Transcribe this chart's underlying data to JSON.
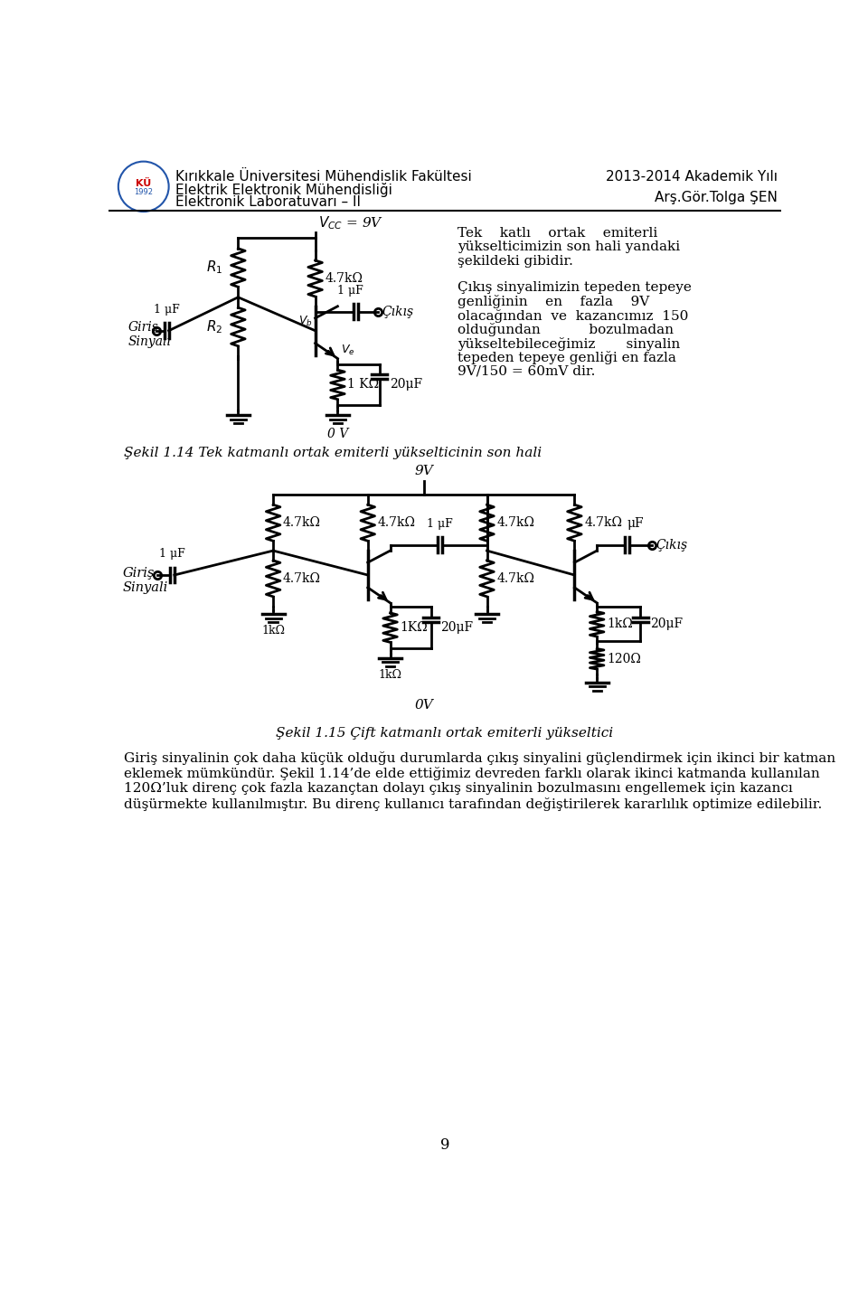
{
  "header_left_line1": "Kırıkkale Üniversitesi Mühendislik Fakültesi",
  "header_left_line2": "Elektrik Elektronik Mühendisliği",
  "header_left_line3": "Elektronik Laboratuvarı – II",
  "header_right_line1": "2013-2014 Akademik Yılı",
  "header_right_line2": "Arş.Gör.Tolga ŞEN",
  "caption1": "Şekil 1.14 Tek katmanlı ortak emiterli yükselticinin son hali",
  "caption2": "Şekil 1.15 Çift katmanlı ortak emiterli yükseltici",
  "text_right1_lines": [
    "Tek    katlı    ortak    emiterli",
    "yükselticimizin son hali yandaki",
    "şekildeki gibidir."
  ],
  "text_right2_lines": [
    "Çıkış sinyalimizin tepeden tepeye",
    "genliğinin    en    fazla    9V",
    "olacağından  ve  kazancımız  150",
    "olduğundan           bozulmadan",
    "yükseltebileceğimiz       sinyalin",
    "tepeden tepeye genliği en fazla",
    "9V/150 = 60mV dir."
  ],
  "bottom_text_line1": "Giriş sinyalinin çok daha küçük olduğu durumlarda çıkış sinyalini güçlendirmek için ikinci bir katman",
  "bottom_text_line2": "eklemek mümkündür. Şekil 1.14’de elde ettiğimiz devreden farklı olarak ikinci katmanda kullanılan",
  "bottom_text_line3": "120Ω’luk direnç çok fazla kazançtan dolayı çıkış sinyalinin bozulmasını engellemek için kazancı",
  "bottom_text_line4": "düşürmekte kullanılmıştır. Bu direnç kullanıcı tarafından değiştirilerek kararlılık optimize edilebilir.",
  "page_number": "9",
  "bg_color": "#ffffff",
  "text_color": "#000000",
  "line_color": "#000000"
}
